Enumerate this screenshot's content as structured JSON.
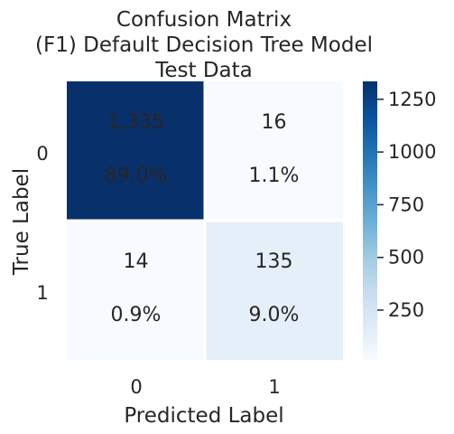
{
  "chart_data": {
    "type": "heatmap",
    "title": [
      "Confusion Matrix",
      "(F1) Default Decision Tree Model",
      "Test Data"
    ],
    "xlabel": "Predicted Label",
    "ylabel": "True Label",
    "x_categories": [
      "0",
      "1"
    ],
    "y_categories": [
      "0",
      "1"
    ],
    "values": [
      [
        1335,
        16
      ],
      [
        14,
        135
      ]
    ],
    "cell_labels": [
      [
        {
          "count": "1,335",
          "percent": "89.0%"
        },
        {
          "count": "16",
          "percent": "1.1%"
        }
      ],
      [
        {
          "count": "14",
          "percent": "0.9%"
        },
        {
          "count": "135",
          "percent": "9.0%"
        }
      ]
    ],
    "colorbar": {
      "vmin": 14,
      "vmax": 1335,
      "ticks": [
        250,
        500,
        750,
        1000,
        1250
      ],
      "tick_labels": [
        "250",
        "500",
        "750",
        "1000",
        "1250"
      ],
      "colormap": "Blues"
    },
    "grid": false
  }
}
